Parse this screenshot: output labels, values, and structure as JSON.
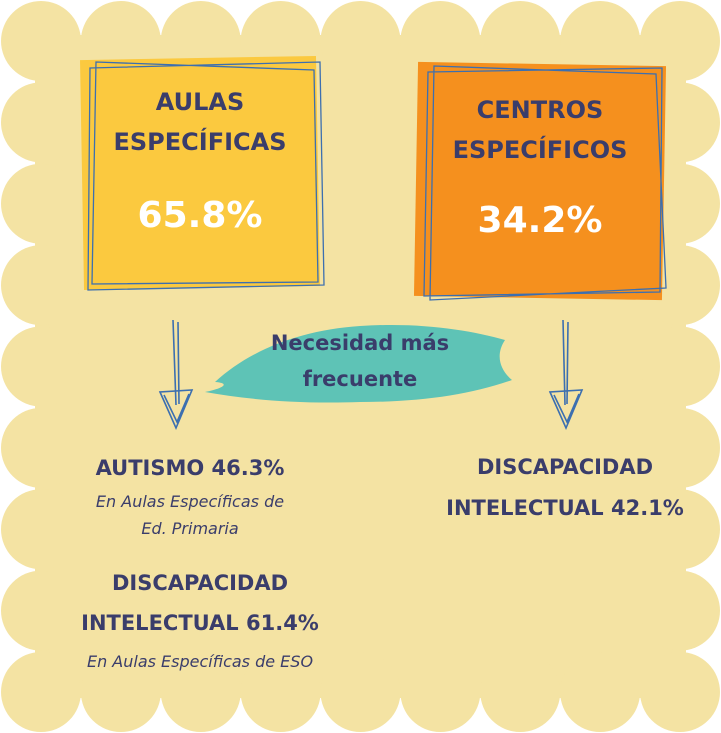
{
  "cards": [
    {
      "title": "AULAS ESPECÍFICAS",
      "value": "65.8%"
    },
    {
      "title": "CENTROS ESPECÍFICOS",
      "value": "34.2%"
    }
  ],
  "banner": "Necesidad más frecuente",
  "left": {
    "items": [
      {
        "heading": "AUTISMO 46.3%",
        "note": "En Aulas Específicas de Ed. Primaria"
      },
      {
        "heading": "DISCAPACIDAD INTELECTUAL 61.4%",
        "note": "En Aulas Específicas de ESO"
      }
    ]
  },
  "right": {
    "heading": "DISCAPACIDAD INTELECTUAL 42.1%"
  }
}
